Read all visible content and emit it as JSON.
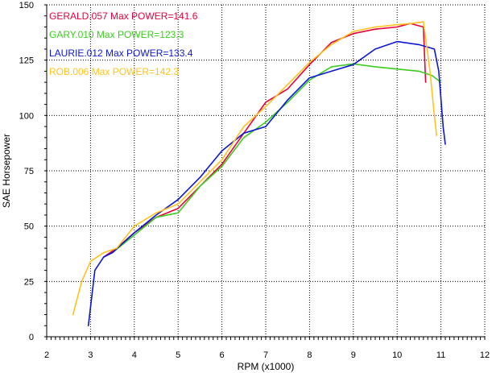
{
  "chart_data": {
    "type": "line",
    "xlabel": "RPM (x1000)",
    "ylabel": "SAE Horsepower",
    "xlim": [
      2,
      12
    ],
    "ylim": [
      0,
      150
    ],
    "x_ticks": [
      "2",
      "3",
      "4",
      "5",
      "6",
      "7",
      "8",
      "9",
      "10",
      "11",
      "12"
    ],
    "y_ticks": [
      "0",
      "25",
      "50",
      "75",
      "100",
      "125",
      "150"
    ],
    "grid": true,
    "legend_position": "top-left",
    "legend": [
      {
        "text": "GERALD.057  Max POWER=141.6",
        "color": "#e8003c"
      },
      {
        "text": "GARY.010  Max POWER=123.3",
        "color": "#3ccc1e"
      },
      {
        "text": "LAURIE.012  Max POWER=133.4",
        "color": "#0b17d4"
      },
      {
        "text": "ROB.006  Max POWER=142.3",
        "color": "#ffc21c"
      }
    ],
    "series": [
      {
        "name": "GERALD.057",
        "color": "#e8003c",
        "x": [
          3.3,
          3.6,
          4.0,
          4.5,
          5.0,
          5.5,
          6.0,
          6.5,
          7.0,
          7.5,
          8.0,
          8.5,
          9.0,
          9.5,
          10.0,
          10.3,
          10.6,
          10.65
        ],
        "y": [
          36,
          40,
          47,
          54,
          58,
          68,
          78,
          92,
          106,
          112,
          123,
          133,
          137,
          139,
          140,
          141.6,
          140,
          115
        ]
      },
      {
        "name": "GARY.010",
        "color": "#3ccc1e",
        "x": [
          3.5,
          4.0,
          4.5,
          5.0,
          5.5,
          6.0,
          6.5,
          7.0,
          7.5,
          8.0,
          8.5,
          9.0,
          9.5,
          10.0,
          10.5,
          10.8,
          11.0
        ],
        "y": [
          38,
          46,
          54,
          56,
          68,
          77,
          90,
          97,
          106,
          116,
          122,
          123.3,
          122,
          121,
          120,
          118,
          115
        ]
      },
      {
        "name": "LAURIE.012",
        "color": "#0b17d4",
        "x": [
          2.95,
          3.1,
          3.3,
          3.5,
          4.0,
          4.5,
          5.0,
          5.5,
          6.0,
          6.5,
          7.0,
          7.5,
          8.0,
          8.5,
          9.0,
          9.5,
          10.0,
          10.5,
          10.85,
          10.95,
          11.05,
          11.1
        ],
        "y": [
          5,
          30,
          36,
          38,
          47,
          55,
          62,
          72,
          84,
          92,
          95,
          107,
          117,
          120,
          123,
          130,
          133.4,
          132,
          130,
          120,
          95,
          87
        ]
      },
      {
        "name": "ROB.006",
        "color": "#ffc21c",
        "x": [
          2.6,
          2.8,
          3.0,
          3.3,
          3.6,
          4.0,
          4.5,
          5.0,
          5.5,
          6.0,
          6.5,
          7.0,
          7.5,
          8.0,
          8.5,
          9.0,
          9.5,
          10.0,
          10.3,
          10.6,
          10.75,
          10.85,
          10.9
        ],
        "y": [
          10,
          25,
          34,
          38,
          40,
          50,
          56,
          60,
          70,
          80,
          95,
          104,
          114,
          124,
          132,
          138,
          140,
          141,
          141.5,
          142.3,
          120,
          100,
          91
        ]
      }
    ]
  }
}
